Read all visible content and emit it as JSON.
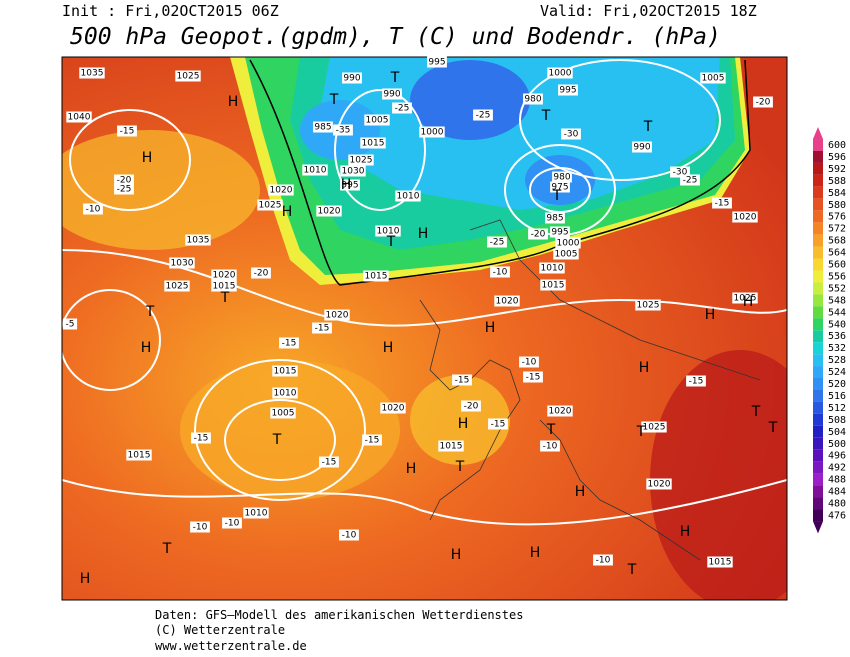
{
  "header": {
    "init": "Init : Fri,02OCT2015 06Z",
    "valid": "Valid: Fri,02OCT2015 18Z",
    "title": "500 hPa Geopot.(gpdm), T (C) und Bodendr. (hPa)"
  },
  "legend": {
    "levels": [
      600,
      596,
      592,
      588,
      584,
      580,
      576,
      572,
      568,
      564,
      560,
      556,
      552,
      548,
      544,
      540,
      536,
      532,
      528,
      524,
      520,
      516,
      512,
      508,
      504,
      500,
      496,
      492,
      488,
      484,
      480,
      476
    ],
    "colors": [
      "#e8408a",
      "#a01030",
      "#b81818",
      "#cc2418",
      "#dc3a1c",
      "#e65220",
      "#ee6a22",
      "#f48424",
      "#f8a028",
      "#f8bc2c",
      "#f8d830",
      "#f0ee3c",
      "#c8ee40",
      "#98e640",
      "#60dc40",
      "#30d460",
      "#18cca0",
      "#18d4d4",
      "#28c0f0",
      "#30a8f8",
      "#3090f4",
      "#3074ec",
      "#2858e0",
      "#2038d4",
      "#2020c4",
      "#3c14bc",
      "#5c10bc",
      "#7c18c0",
      "#9c20c8",
      "#801098",
      "#600878",
      "#400058"
    ]
  },
  "map_labels": [
    "1035",
    "1025",
    "990",
    "995",
    "1000",
    "1005",
    "995",
    "990",
    "980",
    "1040",
    "1005",
    "1000",
    "985",
    "990",
    "1025",
    "1030",
    "1015",
    "1010",
    "995",
    "980",
    "975",
    "1020",
    "1025",
    "1020",
    "1010",
    "985",
    "995",
    "1000",
    "1005",
    "1010",
    "1035",
    "1030",
    "1015",
    "1020",
    "1015",
    "1025",
    "1010",
    "1015",
    "1020",
    "1020",
    "1025",
    "1025",
    "1015",
    "1010",
    "1005",
    "1020",
    "1020",
    "1015",
    "1025",
    "1015",
    "1010",
    "1020",
    "1015",
    "1020",
    "-15",
    "-20",
    "-25",
    "-10",
    "-20",
    "-15",
    "-15",
    "-5",
    "-15",
    "-15",
    "-15",
    "-10",
    "-10",
    "-10",
    "-10",
    "-15",
    "-20",
    "-15",
    "-30",
    "-35",
    "-25",
    "-25",
    "-30",
    "-25",
    "-20",
    "-25",
    "-10",
    "-15",
    "-20",
    "-15",
    "-10",
    "-15",
    "-10",
    "H",
    "T",
    "T",
    "T",
    "T",
    "H",
    "H",
    "H",
    "T",
    "H",
    "T",
    "T",
    "T",
    "H",
    "H",
    "H",
    "H",
    "H",
    "H",
    "T",
    "H",
    "T",
    "H",
    "T",
    "T",
    "T",
    "T",
    "H",
    "H",
    "T",
    "H",
    "H",
    "T",
    "H"
  ],
  "footer": [
    "Daten: GFS–Modell des amerikanischen Wetterdienstes",
    "(C) Wetterzentrale",
    "www.wetterzentrale.de"
  ]
}
